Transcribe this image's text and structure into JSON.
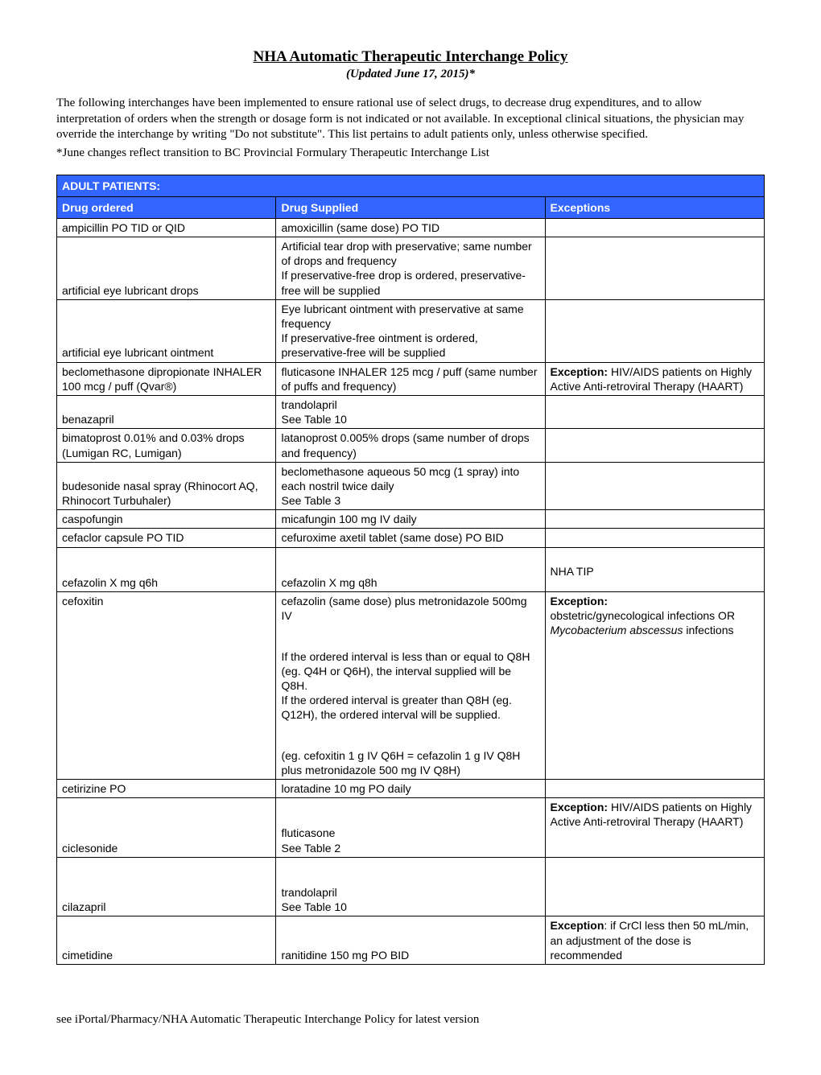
{
  "title": "NHA Automatic Therapeutic Interchange Policy",
  "subtitle": "(Updated June 17, 2015)*",
  "intro": "The following interchanges have been implemented to ensure rational use of select drugs, to decrease drug expenditures, and to allow interpretation of orders when the strength or dosage form is not indicated or not available.  In exceptional clinical situations, the physician may override the interchange by writing \"Do not substitute\".  This list pertains to adult patients only, unless otherwise specified.",
  "note": "*June  changes reflect transition to BC Provincial Formulary Therapeutic Interchange List",
  "section_header": "ADULT PATIENTS:",
  "columns": {
    "ordered": "Drug ordered",
    "supplied": "Drug Supplied",
    "exception": "Exceptions"
  },
  "rows": [
    {
      "ordered": "ampicillin PO TID or QID",
      "supplied": "amoxicillin (same dose) PO TID",
      "exception_html": ""
    },
    {
      "ordered": "artificial eye lubricant drops",
      "supplied": "Artificial tear drop with preservative; same number of drops and frequency\nIf preservative-free drop is ordered, preservative-free will be supplied",
      "exception_html": ""
    },
    {
      "ordered": "artificial eye lubricant ointment",
      "supplied": "Eye lubricant ointment with preservative at same frequency\nIf preservative-free ointment is ordered, preservative-free will be supplied",
      "exception_html": ""
    },
    {
      "ordered": "beclomethasone dipropionate INHALER 100 mcg / puff (Qvar®)",
      "supplied": "fluticasone INHALER 125 mcg / puff  (same number of puffs and frequency)",
      "exception_html": "<span class=\"bold\">Exception:</span> HIV/AIDS patients on Highly Active Anti-retroviral Therapy (HAART)"
    },
    {
      "ordered": "benazapril",
      "supplied": "trandolapril\nSee Table 10",
      "exception_html": ""
    },
    {
      "ordered": "bimatoprost 0.01% and 0.03% drops (Lumigan RC, Lumigan)",
      "supplied": "latanoprost 0.005% drops (same number of drops and frequency)",
      "exception_html": ""
    },
    {
      "ordered": "budesonide nasal spray (Rhinocort AQ, Rhinocort Turbuhaler)",
      "supplied": "beclomethasone aqueous 50 mcg (1 spray) into each nostril twice daily\nSee Table 3",
      "exception_html": ""
    },
    {
      "ordered": "caspofungin",
      "supplied": "micafungin 100 mg IV daily",
      "exception_html": ""
    },
    {
      "ordered": "cefaclor capsule PO TID",
      "supplied": "cefuroxime axetil tablet (same dose) PO BID",
      "exception_html": ""
    },
    {
      "ordered": "\ncefazolin X mg q6h",
      "supplied": "\ncefazolin X mg q8h",
      "exception_html": "<br>NHA TIP"
    },
    {
      "ordered": "cefoxitin",
      "ordered_valign": "top",
      "supplied": "cefazolin (same dose) plus metronidazole 500mg IV\n\nIf the ordered interval is less than or equal to Q8H (eg. Q4H or Q6H), the interval supplied will be Q8H.\nIf the ordered interval is greater than Q8H (eg. Q12H), the ordered interval will be supplied.\n\n(eg. cefoxitin 1 g IV Q6H = cefazolin 1 g IV Q8H plus metronidazole 500 mg IV Q8H)",
      "exception_html": "<span class=\"bold\">Exception:</span><br>obstetric/gynecological infections OR <span class=\"italic\">Mycobacterium abscessus</span> infections"
    },
    {
      "ordered": "cetirizine PO",
      "supplied": "loratadine 10 mg PO daily",
      "exception_html": ""
    },
    {
      "ordered": "ciclesonide",
      "supplied": "\nfluticasone\nSee Table 2",
      "exception_html": "<span class=\"bold\">Exception:</span> HIV/AIDS patients on Highly Active Anti-retroviral Therapy (HAART)"
    },
    {
      "ordered": "cilazapril",
      "supplied": "\ntrandolapril\nSee Table 10",
      "exception_html": ""
    },
    {
      "ordered": "cimetidine",
      "supplied": "ranitidine 150 mg PO BID",
      "exception_html": "<span class=\"bold\">Exception</span>: if CrCl less then 50 mL/min, an adjustment of the dose is recommended"
    }
  ],
  "footer": "see iPortal/Pharmacy/NHA Automatic Therapeutic Interchange Policy for latest version",
  "colors": {
    "header_bg": "#3366ff",
    "header_fg": "#ffffff",
    "border": "#000000"
  }
}
